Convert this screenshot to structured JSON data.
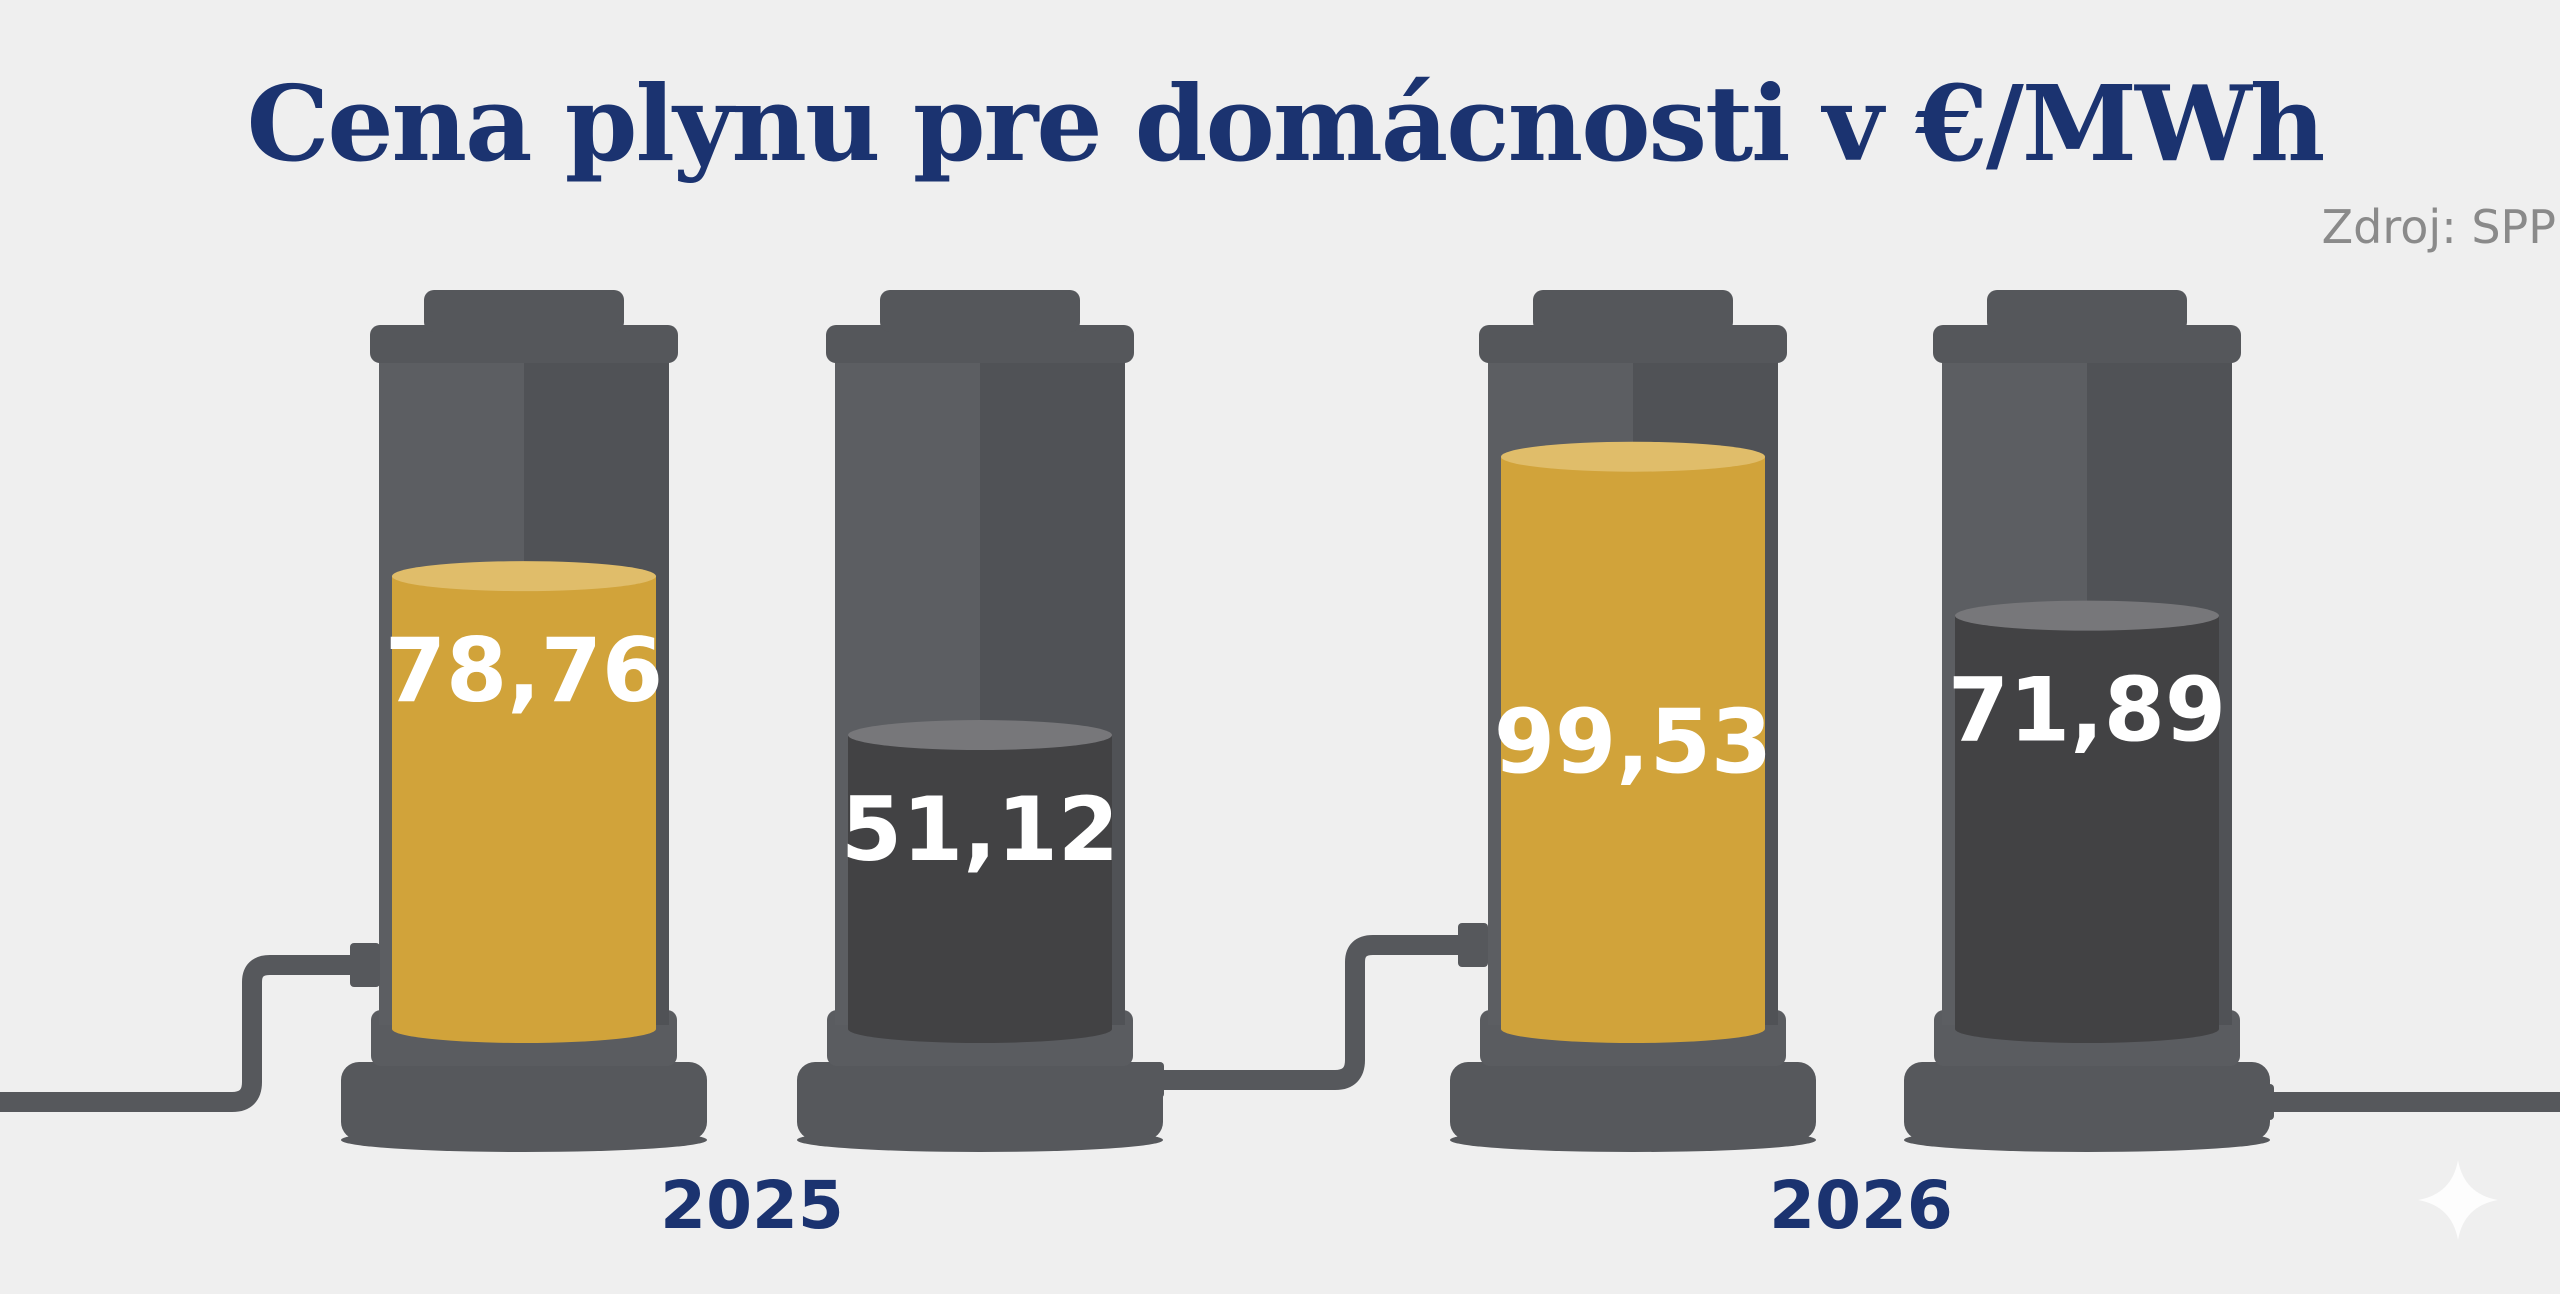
{
  "chart_data": {
    "type": "bar",
    "title": "Cena plynu pre domácnosti v €/MWh",
    "source": "Zdroj: SPP",
    "categories": [
      "2025",
      "2026"
    ],
    "bars": [
      {
        "category": "2025",
        "value": 78.76,
        "label": "78,76",
        "color": "#d1a33a"
      },
      {
        "category": "2025",
        "value": 51.12,
        "label": "51,12",
        "color": "#424244"
      },
      {
        "category": "2026",
        "value": 99.53,
        "label": "99,53",
        "color": "#d1a33a"
      },
      {
        "category": "2026",
        "value": 71.89,
        "label": "71,89",
        "color": "#424244"
      }
    ],
    "colors": {
      "title": "#1b3370",
      "cylinder": "#56585c",
      "background": "#efefef"
    },
    "icons": [
      "sparkle-icon"
    ]
  }
}
